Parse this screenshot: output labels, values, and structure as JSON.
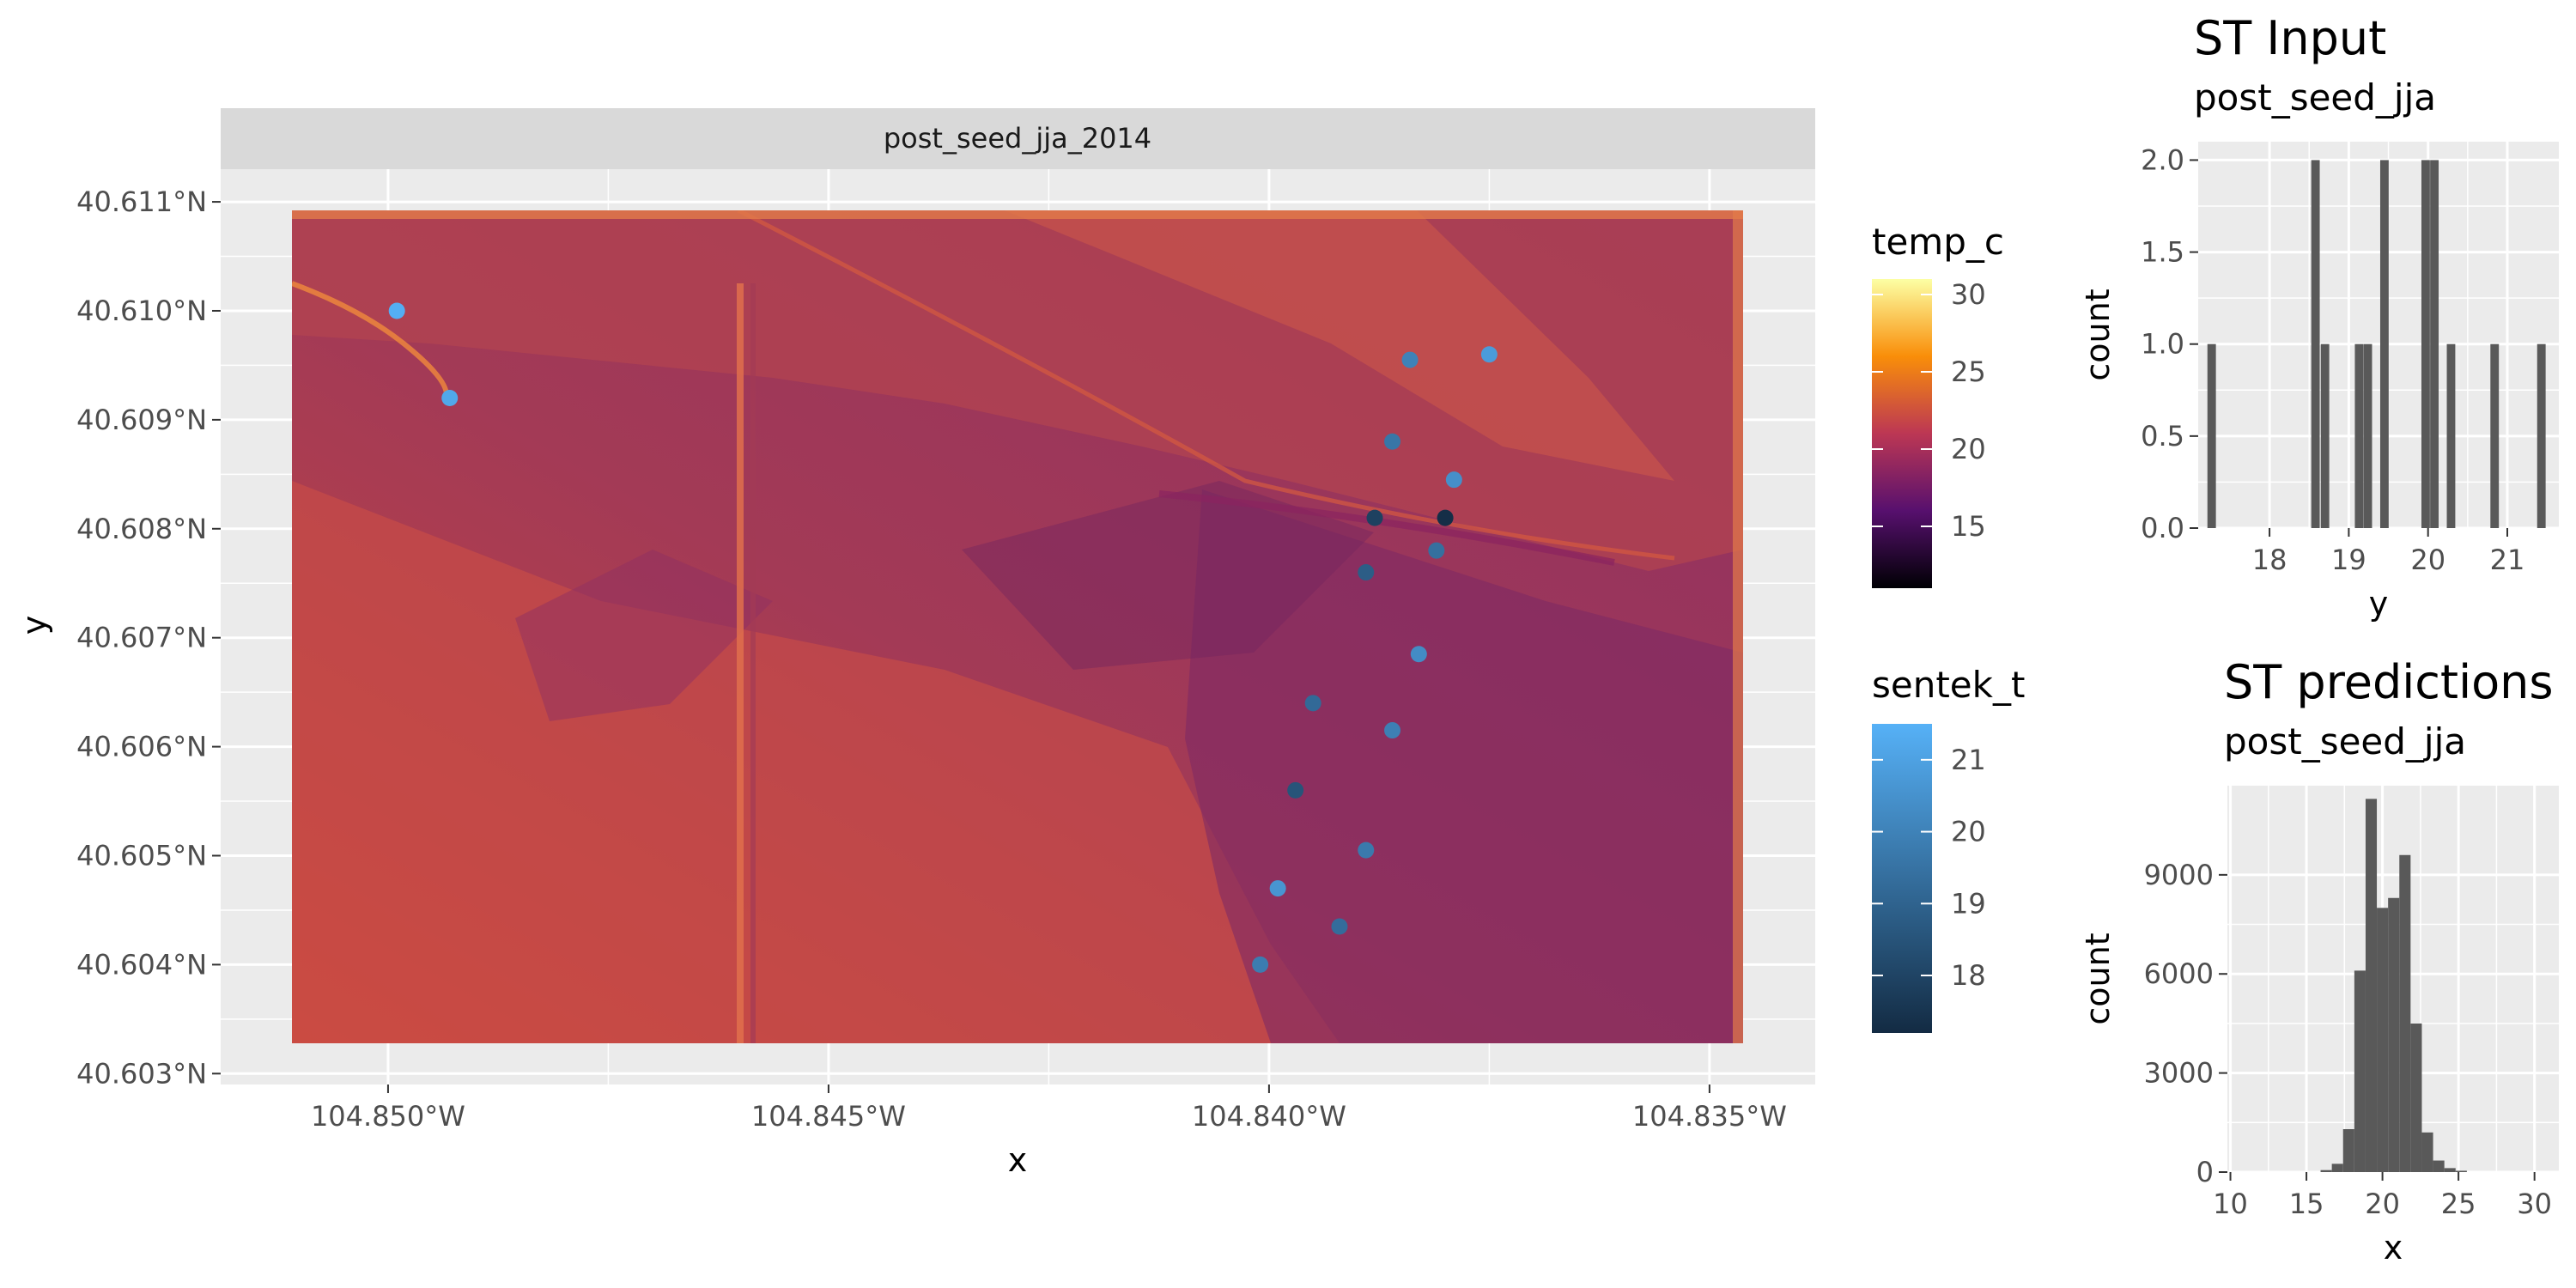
{
  "map": {
    "facet_label": "post_seed_jja_2014",
    "xlabel": "x",
    "ylabel": "y",
    "x_ticks": [
      "104.850°W",
      "104.845°W",
      "104.840°W",
      "104.835°W"
    ],
    "y_ticks": [
      "40.611°N",
      "40.610°N",
      "40.609°N",
      "40.608°N",
      "40.607°N",
      "40.606°N",
      "40.605°N",
      "40.604°N",
      "40.603°N"
    ]
  },
  "legend_temp": {
    "title": "temp_c",
    "labels": [
      "30",
      "25",
      "20",
      "15"
    ],
    "colors": [
      "#fcffa4",
      "#f98e09",
      "#bc3754",
      "#57106e",
      "#000004"
    ]
  },
  "legend_sentek": {
    "title": "sentek_t",
    "labels": [
      "21",
      "20",
      "19",
      "18"
    ],
    "colors": [
      "#56b1f7",
      "#132b43"
    ]
  },
  "hist_input": {
    "title": "ST Input",
    "subtitle": "post_seed_jja",
    "xlabel": "y",
    "ylabel": "count",
    "y_ticks": [
      "2.0",
      "1.5",
      "1.0",
      "0.5",
      "0.0"
    ],
    "x_ticks": [
      "18",
      "19",
      "20",
      "21"
    ]
  },
  "hist_pred": {
    "title": "ST predictions",
    "subtitle": "post_seed_jja",
    "xlabel": "x",
    "ylabel": "count",
    "y_ticks": [
      "9000",
      "6000",
      "3000",
      "0"
    ],
    "x_ticks": [
      "10",
      "15",
      "20",
      "25",
      "30"
    ]
  },
  "chart_data": [
    {
      "type": "scatter",
      "subtype": "raster-map-with-points",
      "facet": "post_seed_jja_2014",
      "xlabel": "x",
      "ylabel": "y",
      "xlim": [
        -104.8519,
        -104.8338
      ],
      "ylim": [
        40.6029,
        40.6113
      ],
      "fill_scale": {
        "name": "temp_c",
        "range": [
          11,
          31
        ],
        "palette": "inferno"
      },
      "color_scale": {
        "name": "sentek_t",
        "range": [
          17.2,
          21.5
        ]
      },
      "points": [
        {
          "x": -104.8499,
          "y": 40.61,
          "sentek_t": 21.4
        },
        {
          "x": -104.8493,
          "y": 40.6092,
          "sentek_t": 21.2
        },
        {
          "x": -104.8384,
          "y": 40.60955,
          "sentek_t": 20.0
        },
        {
          "x": -104.8375,
          "y": 40.6096,
          "sentek_t": 20.8
        },
        {
          "x": -104.8386,
          "y": 40.6088,
          "sentek_t": 19.6
        },
        {
          "x": -104.8379,
          "y": 40.60845,
          "sentek_t": 20.4
        },
        {
          "x": -104.8388,
          "y": 40.6081,
          "sentek_t": 17.9
        },
        {
          "x": -104.838,
          "y": 40.6081,
          "sentek_t": 17.3
        },
        {
          "x": -104.8381,
          "y": 40.6078,
          "sentek_t": 19.4
        },
        {
          "x": -104.8389,
          "y": 40.6076,
          "sentek_t": 18.8
        },
        {
          "x": -104.8383,
          "y": 40.60685,
          "sentek_t": 20.3
        },
        {
          "x": -104.8395,
          "y": 40.6064,
          "sentek_t": 19.2
        },
        {
          "x": -104.8386,
          "y": 40.60615,
          "sentek_t": 19.9
        },
        {
          "x": -104.8397,
          "y": 40.6056,
          "sentek_t": 18.5
        },
        {
          "x": -104.8389,
          "y": 40.60505,
          "sentek_t": 19.7
        },
        {
          "x": -104.8399,
          "y": 40.6047,
          "sentek_t": 20.6
        },
        {
          "x": -104.8392,
          "y": 40.60435,
          "sentek_t": 19.3
        },
        {
          "x": -104.8401,
          "y": 40.604,
          "sentek_t": 19.8
        }
      ]
    },
    {
      "type": "bar",
      "subtype": "histogram",
      "title": "ST Input",
      "subtitle": "post_seed_jja",
      "xlabel": "y",
      "ylabel": "count",
      "xlim": [
        17.1,
        21.65
      ],
      "ylim": [
        0,
        2.1
      ],
      "bin_width": 0.107,
      "bins": [
        {
          "x": 17.27,
          "count": 1
        },
        {
          "x": 18.58,
          "count": 2
        },
        {
          "x": 18.7,
          "count": 1
        },
        {
          "x": 19.13,
          "count": 1
        },
        {
          "x": 19.24,
          "count": 1
        },
        {
          "x": 19.45,
          "count": 2
        },
        {
          "x": 19.97,
          "count": 2
        },
        {
          "x": 20.08,
          "count": 2
        },
        {
          "x": 20.29,
          "count": 1
        },
        {
          "x": 20.84,
          "count": 1
        },
        {
          "x": 21.43,
          "count": 1
        }
      ]
    },
    {
      "type": "bar",
      "subtype": "histogram",
      "title": "ST predictions",
      "subtitle": "post_seed_jja",
      "xlabel": "x",
      "ylabel": "count",
      "xlim": [
        9.8,
        31.6
      ],
      "ylim": [
        0,
        11700
      ],
      "bin_width": 0.74,
      "bins": [
        {
          "x": 16.3,
          "count": 60
        },
        {
          "x": 17.04,
          "count": 250
        },
        {
          "x": 17.78,
          "count": 1300
        },
        {
          "x": 18.52,
          "count": 6100
        },
        {
          "x": 19.26,
          "count": 11300
        },
        {
          "x": 20.0,
          "count": 8000
        },
        {
          "x": 20.74,
          "count": 8300
        },
        {
          "x": 21.48,
          "count": 9600
        },
        {
          "x": 22.22,
          "count": 4500
        },
        {
          "x": 22.96,
          "count": 1200
        },
        {
          "x": 23.7,
          "count": 350
        },
        {
          "x": 24.44,
          "count": 120
        },
        {
          "x": 25.18,
          "count": 40
        }
      ]
    }
  ]
}
